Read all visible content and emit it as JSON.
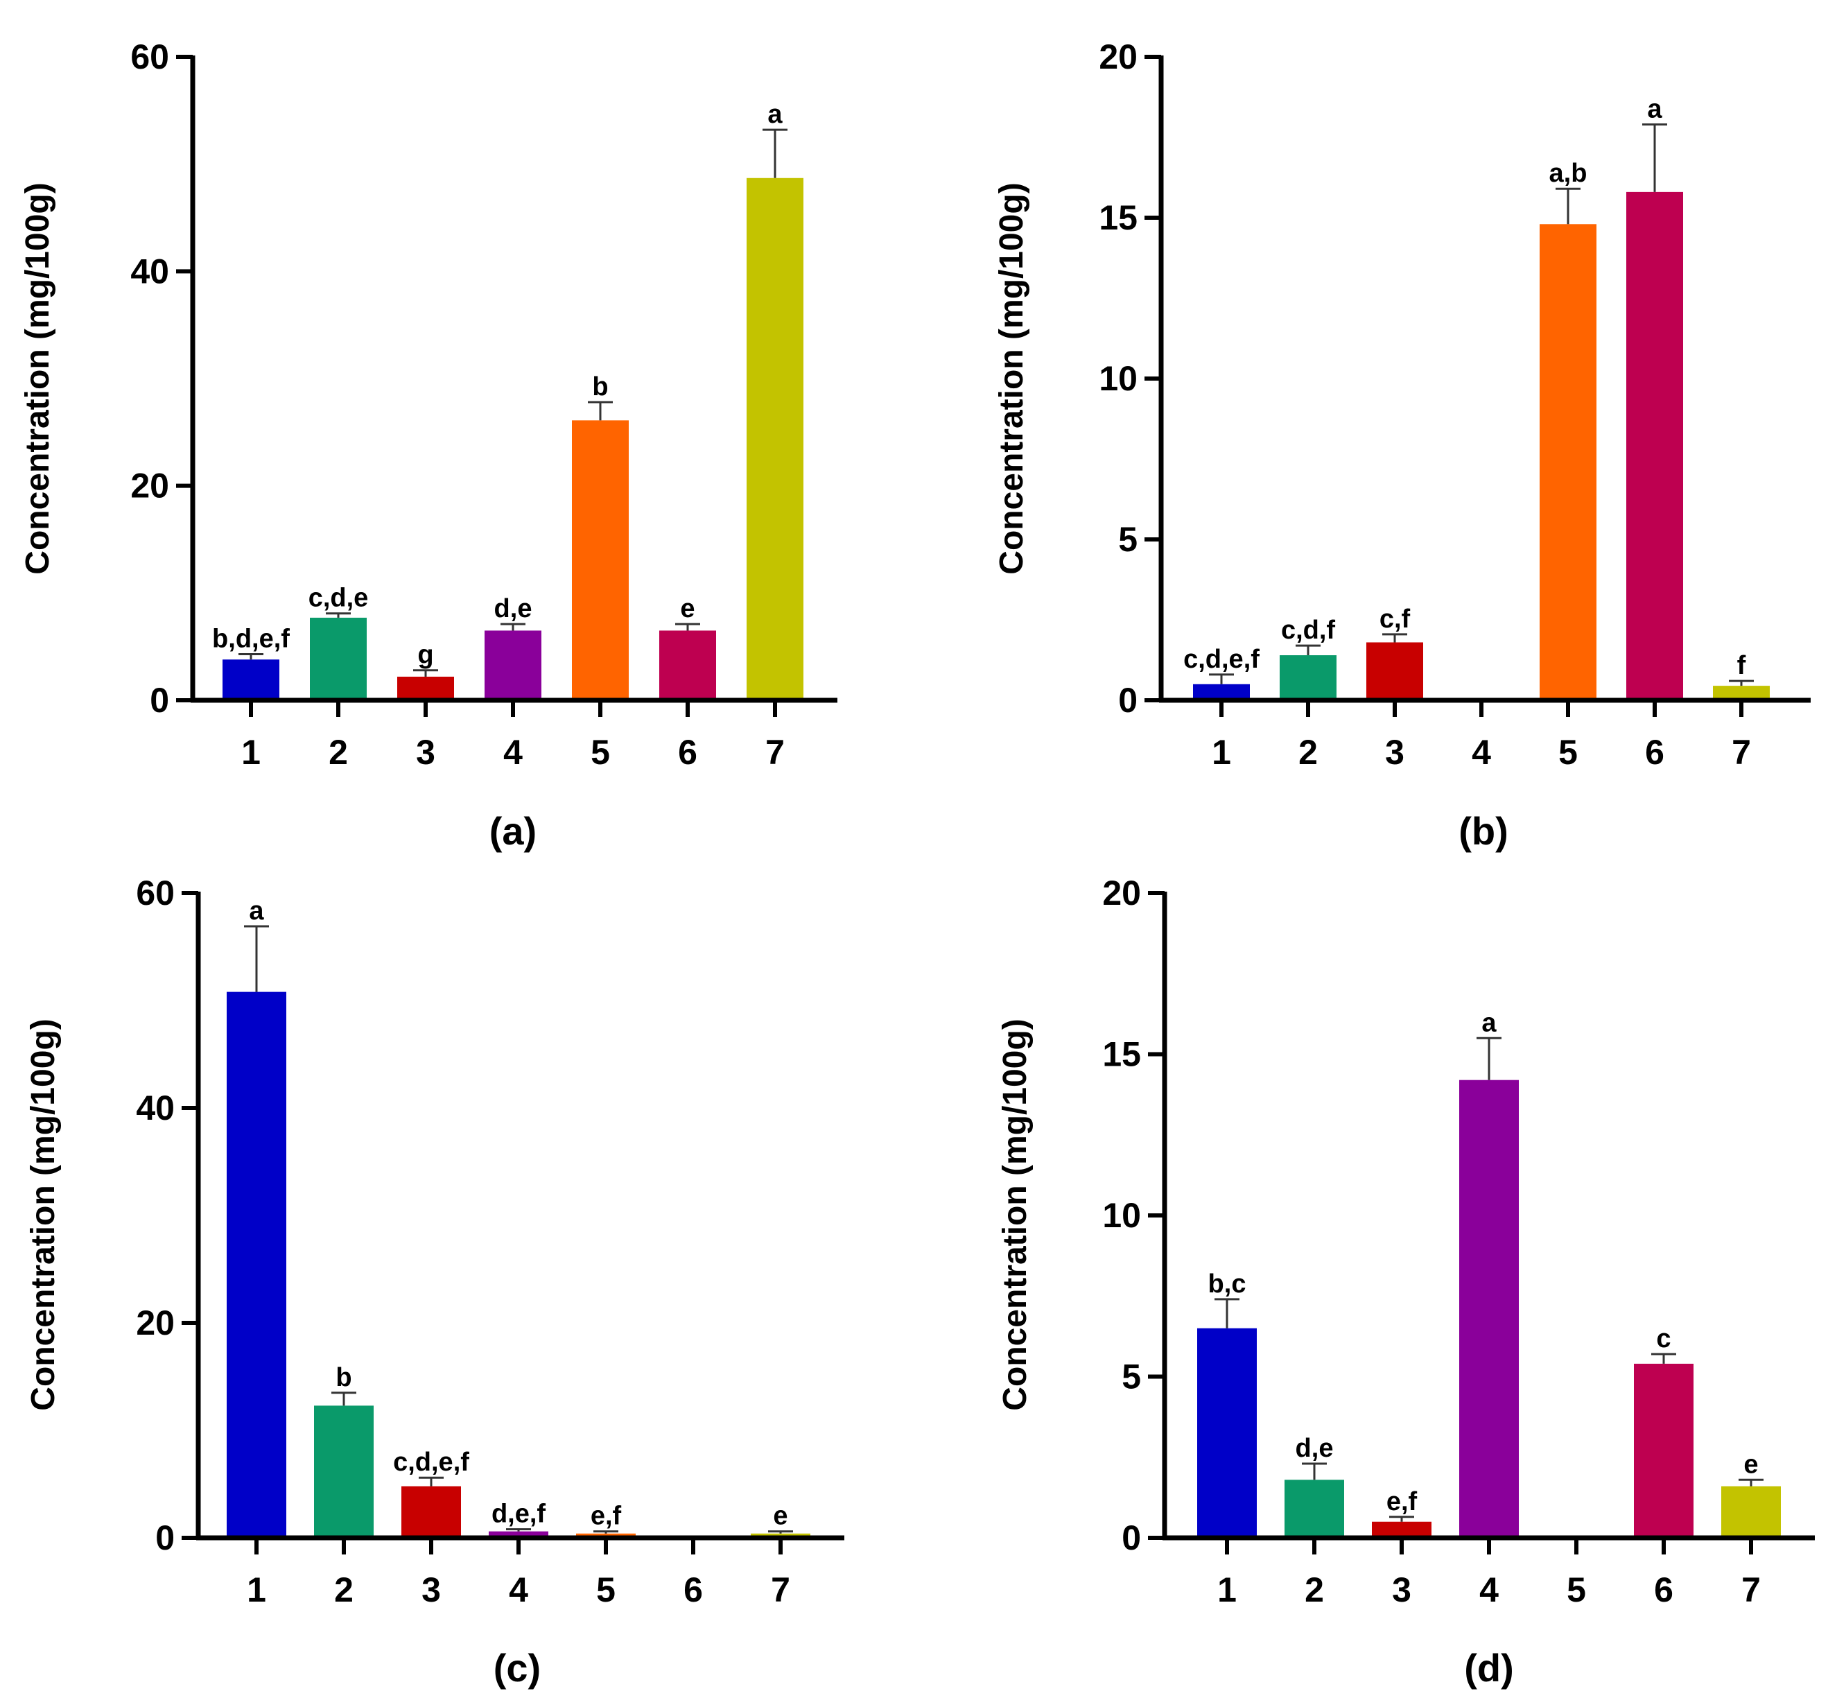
{
  "chart_data": [
    {
      "type": "bar",
      "panel_label": "(a)",
      "ylabel": "Concentration (mg/100g)",
      "categories": [
        "1",
        "2",
        "3",
        "4",
        "5",
        "6",
        "7"
      ],
      "values": [
        3.8,
        7.7,
        2.2,
        6.5,
        26.1,
        6.5,
        48.7
      ],
      "errors": [
        0.5,
        0.4,
        0.6,
        0.6,
        1.7,
        0.6,
        4.5
      ],
      "significance": [
        "b,d,e,f",
        "c,d,e",
        "g",
        "d,e",
        "b",
        "e",
        "a"
      ],
      "colors": [
        "#0000c8",
        "#0a9a6a",
        "#c80000",
        "#8a009a",
        "#ff6400",
        "#be0050",
        "#c3c300"
      ],
      "ylim": [
        0,
        60
      ],
      "yticks": [
        "0",
        "20",
        "40",
        "60"
      ]
    },
    {
      "type": "bar",
      "panel_label": "(b)",
      "ylabel": "Concentration (mg/100g)",
      "categories": [
        "1",
        "2",
        "3",
        "4",
        "5",
        "6",
        "7"
      ],
      "values": [
        0.5,
        1.4,
        1.8,
        0,
        14.8,
        15.8,
        0.45
      ],
      "errors": [
        0.3,
        0.3,
        0.25,
        0,
        1.1,
        2.1,
        0.15
      ],
      "significance": [
        "c,d,e,f",
        "c,d,f",
        "c,f",
        "",
        "a,b",
        "a",
        "f"
      ],
      "colors": [
        "#0000c8",
        "#0a9a6a",
        "#c80000",
        "#8a009a",
        "#ff6400",
        "#be0050",
        "#c3c300"
      ],
      "ylim": [
        0,
        20
      ],
      "yticks": [
        "0",
        "5",
        "10",
        "15",
        "20"
      ]
    },
    {
      "type": "bar",
      "panel_label": "(c)",
      "ylabel": "Concentration (mg/100g)",
      "categories": [
        "1",
        "2",
        "3",
        "4",
        "5",
        "6",
        "7"
      ],
      "values": [
        50.8,
        12.3,
        4.8,
        0.6,
        0.4,
        0,
        0.4
      ],
      "errors": [
        6.1,
        1.2,
        0.8,
        0.2,
        0.2,
        0,
        0.2
      ],
      "significance": [
        "a",
        "b",
        "c,d,e,f",
        "d,e,f",
        "e,f",
        "",
        "e"
      ],
      "colors": [
        "#0000c8",
        "#0a9a6a",
        "#c80000",
        "#8a009a",
        "#ff6400",
        "#be0050",
        "#c3c300"
      ],
      "ylim": [
        0,
        60
      ],
      "yticks": [
        "0",
        "20",
        "40",
        "60"
      ]
    },
    {
      "type": "bar",
      "panel_label": "(d)",
      "ylabel": "Concentration (mg/100g)",
      "categories": [
        "1",
        "2",
        "3",
        "4",
        "5",
        "6",
        "7"
      ],
      "values": [
        6.5,
        1.8,
        0.5,
        14.2,
        0,
        5.4,
        1.6
      ],
      "errors": [
        0.9,
        0.5,
        0.15,
        1.3,
        0,
        0.3,
        0.2
      ],
      "significance": [
        "b,c",
        "d,e",
        "e,f",
        "a",
        "",
        "c",
        "e"
      ],
      "colors": [
        "#0000c8",
        "#0a9a6a",
        "#c80000",
        "#8a009a",
        "#ff6400",
        "#be0050",
        "#c3c300"
      ],
      "ylim": [
        0,
        20
      ],
      "yticks": [
        "0",
        "5",
        "10",
        "15",
        "20"
      ]
    }
  ]
}
